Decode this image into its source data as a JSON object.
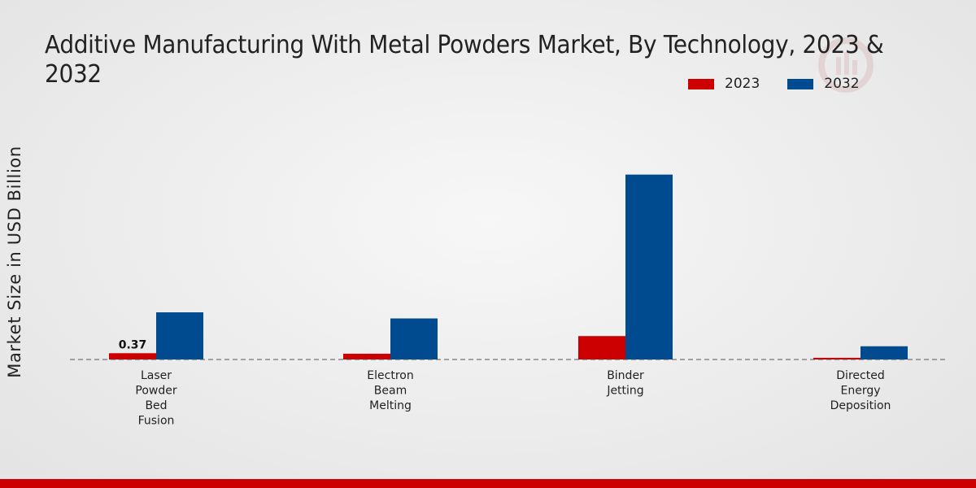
{
  "chart_data": {
    "type": "bar",
    "title": "Additive Manufacturing With Metal Powders Market, By Technology, 2023 & 2032",
    "ylabel": "Market Size in USD Billion",
    "xlabel": "",
    "categories": [
      [
        "Laser",
        "Powder",
        "Bed",
        "Fusion"
      ],
      [
        "Electron",
        "Beam",
        "Melting"
      ],
      [
        "Binder",
        "Jetting"
      ],
      [
        "Directed",
        "Energy",
        "Deposition"
      ]
    ],
    "series": [
      {
        "name": "2023",
        "color": "#cc0000",
        "values": [
          0.37,
          0.34,
          1.38,
          0.1
        ]
      },
      {
        "name": "2032",
        "color": "#004a8f",
        "values": [
          2.78,
          2.42,
          10.9,
          0.78
        ]
      }
    ],
    "data_labels": [
      {
        "series": 0,
        "index": 0,
        "text": "0.37"
      }
    ],
    "ylim": [
      0,
      14
    ],
    "baseline": "dashed",
    "legend_position": "top-right"
  }
}
